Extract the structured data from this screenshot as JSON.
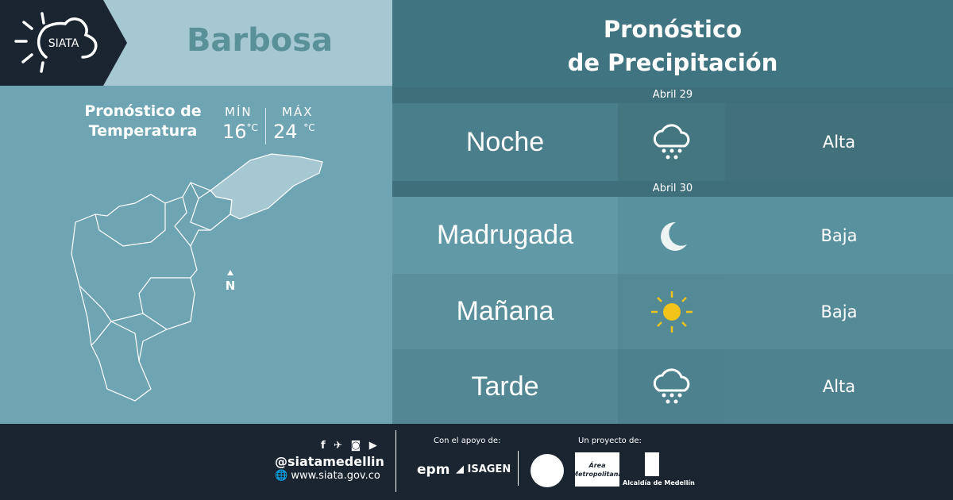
{
  "brand": {
    "logo_text": "SIATA"
  },
  "city": "Barbosa",
  "temperature": {
    "title_line1": "Pronóstico de",
    "title_line2": "Temperatura",
    "min_label": "MÍN",
    "min_value": "16",
    "max_label": "MÁX",
    "max_value": "24",
    "unit": "°C"
  },
  "map": {
    "north_label": "N"
  },
  "precip": {
    "title_line1": "Pronóstico",
    "title_line2": "de Precipitación",
    "dates": [
      "Abril 29",
      "Abril 30"
    ],
    "rows": [
      {
        "period": "Noche",
        "icon": "rain-cloud-icon",
        "level": "Alta"
      },
      {
        "period": "Madrugada",
        "icon": "moon-icon",
        "level": "Baja"
      },
      {
        "period": "Mañana",
        "icon": "sun-icon",
        "level": "Baja"
      },
      {
        "period": "Tarde",
        "icon": "rain-cloud-icon",
        "level": "Alta"
      }
    ]
  },
  "footer": {
    "social_handle": "@siatamedellin",
    "website": "www.siata.gov.co",
    "support_label": "Con el apoyo de:",
    "sponsors": [
      "epm",
      "ISAGEN"
    ],
    "project_label": "Un proyecto de:",
    "partners": [
      "Área Metropolitana",
      "Alcaldía de Medellín"
    ]
  },
  "colors": {
    "dark": "#1b2431",
    "accent_sun": "#f2c318"
  }
}
